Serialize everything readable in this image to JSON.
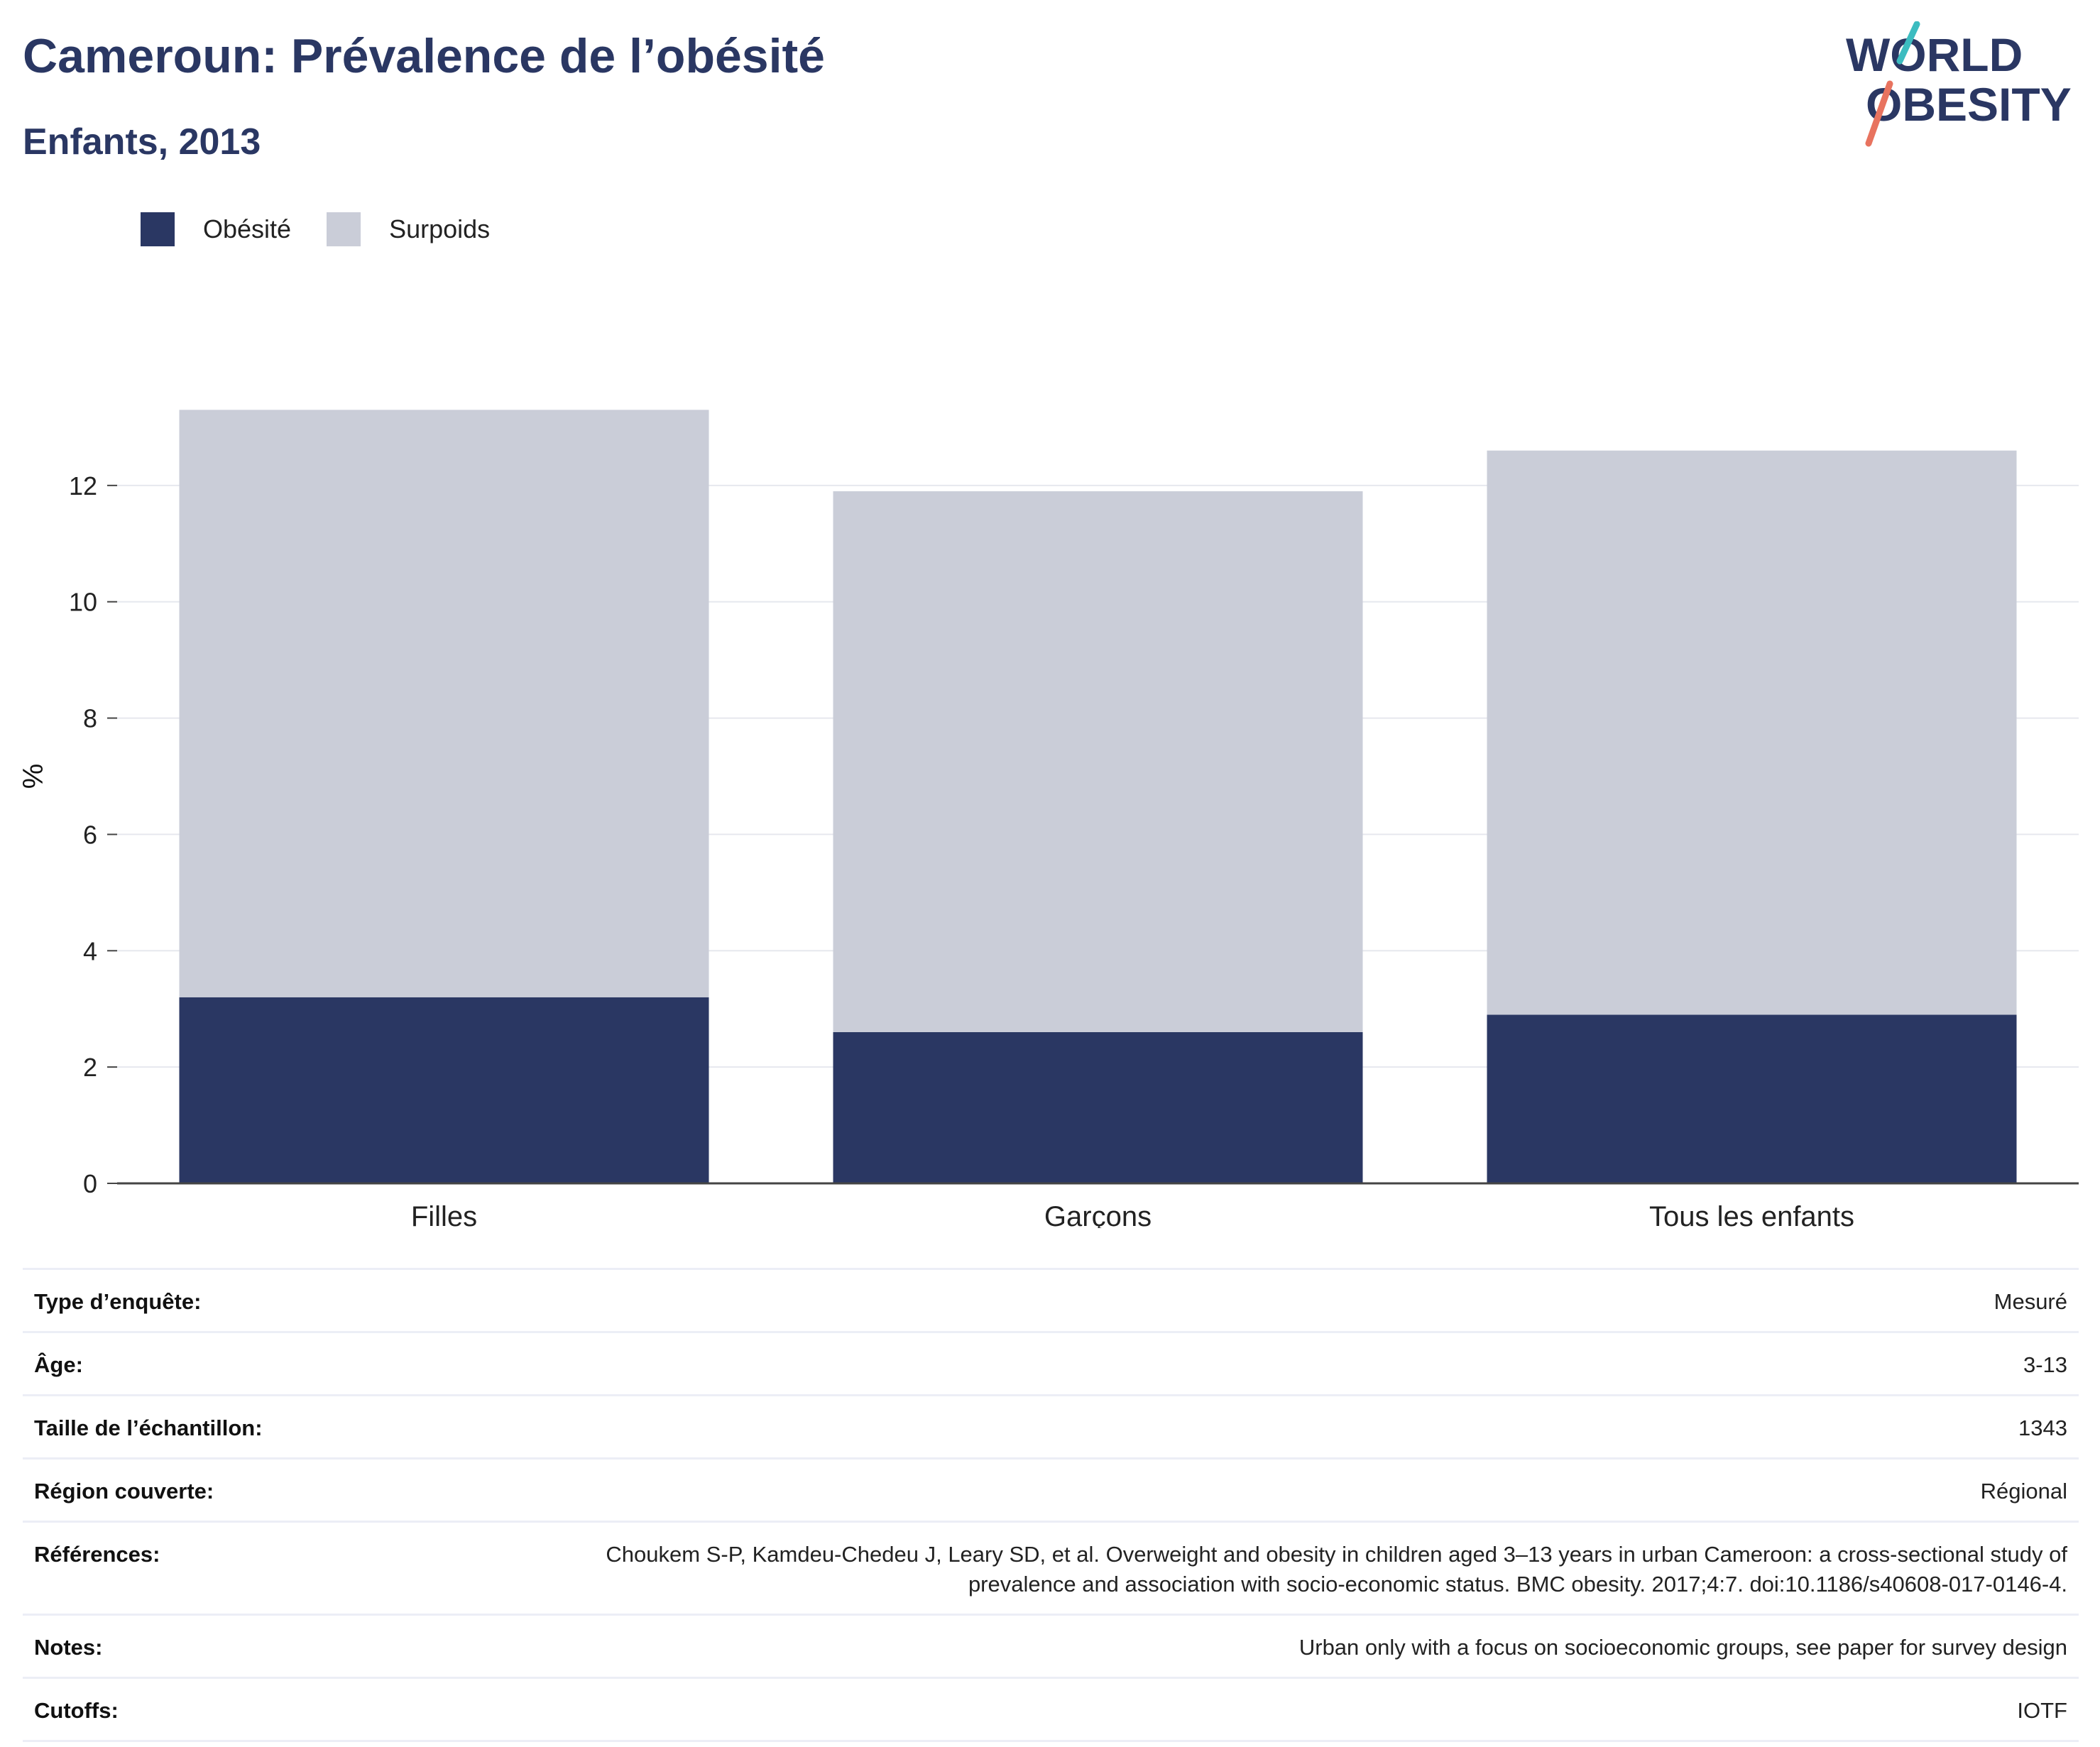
{
  "header": {
    "title": "Cameroun: Prévalence de l’obésité",
    "subtitle": "Enfants, 2013"
  },
  "logo": {
    "line1": "WORLD",
    "line2": "OBESITY",
    "colors": {
      "text": "#2a3763",
      "slash_top": "#3cbcc0",
      "slash_bottom": "#e8735f"
    }
  },
  "legend": {
    "items": [
      {
        "label": "Obésité",
        "color": "#2a3763"
      },
      {
        "label": "Surpoids",
        "color": "#cacdd8"
      }
    ]
  },
  "chart_data": {
    "type": "bar",
    "stacked": true,
    "categories": [
      "Filles",
      "Garçons",
      "Tous les enfants"
    ],
    "series": [
      {
        "name": "Obésité",
        "color": "#2a3763",
        "values": [
          3.2,
          2.6,
          2.9
        ]
      },
      {
        "name": "Surpoids",
        "color": "#cacdd8",
        "values": [
          10.1,
          9.3,
          9.7
        ]
      }
    ],
    "ylabel": "%",
    "ylim": [
      0,
      14
    ],
    "yticks": [
      0,
      2,
      4,
      6,
      8,
      10,
      12
    ],
    "grid": true,
    "legend_position": "top-left"
  },
  "info": {
    "rows": [
      {
        "label": "Type d’enquête:",
        "value": "Mesuré"
      },
      {
        "label": "Âge:",
        "value": "3-13"
      },
      {
        "label": "Taille de l’échantillon:",
        "value": "1343"
      },
      {
        "label": "Région couverte:",
        "value": "Régional"
      },
      {
        "label": "Références:",
        "value": "Choukem S-P, Kamdeu-Chedeu J, Leary SD, et al. Overweight and obesity in children aged 3–13 years in urban Cameroon: a cross-sectional study of prevalence and association with socio-economic status. BMC obesity. 2017;4:7. doi:10.1186/s40608-017-0146-4."
      },
      {
        "label": "Notes:",
        "value": "Urban only with a focus on socioeconomic groups, see paper for survey design"
      },
      {
        "label": "Cutoffs:",
        "value": "IOTF"
      }
    ]
  }
}
